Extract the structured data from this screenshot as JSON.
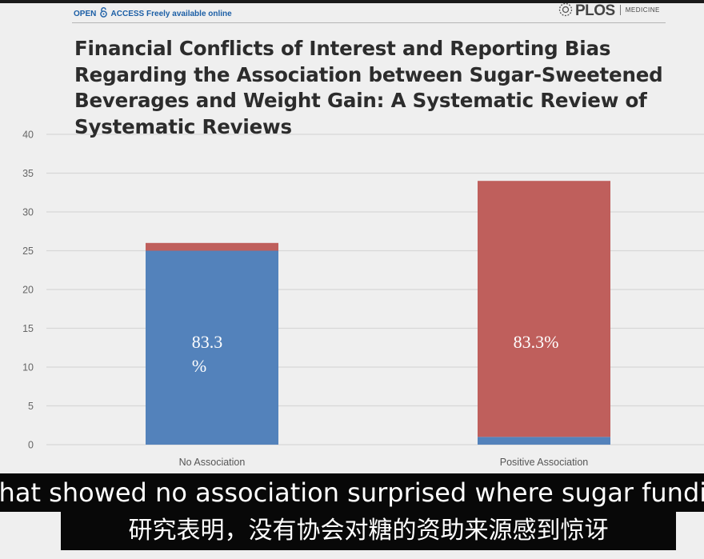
{
  "header": {
    "open_access": "OPEN",
    "access_word": "ACCESS",
    "freely": "Freely available online",
    "journal": "PLOS",
    "journal_sub": "MEDICINE"
  },
  "title_lines": [
    "Financial Conflicts of Interest and Reporting Bias",
    "Regarding the Association between Sugar-Sweetened",
    "Beverages and Weight Gain: A Systematic Review of",
    "Systematic Reviews"
  ],
  "chart_data": {
    "type": "bar",
    "stacked": true,
    "categories": [
      "No Association",
      "Positive Association"
    ],
    "series": [
      {
        "name": "blue",
        "color": "#5382bb",
        "values": [
          25,
          1
        ]
      },
      {
        "name": "red",
        "color": "#bf5f5c",
        "values": [
          1,
          33
        ]
      }
    ],
    "data_labels": [
      {
        "category": "No Association",
        "lines": [
          "83.3",
          "%"
        ]
      },
      {
        "category": "Positive Association",
        "lines": [
          "83.3%"
        ]
      }
    ],
    "ylim": [
      0,
      40
    ],
    "yticks": [
      0,
      5,
      10,
      15,
      20,
      25,
      30,
      35,
      40
    ],
    "grid": true
  },
  "subtitles": {
    "english": "that showed no association surprised where sugar funding",
    "chinese": "研究表明，没有协会对糖的资助来源感到惊讶"
  }
}
